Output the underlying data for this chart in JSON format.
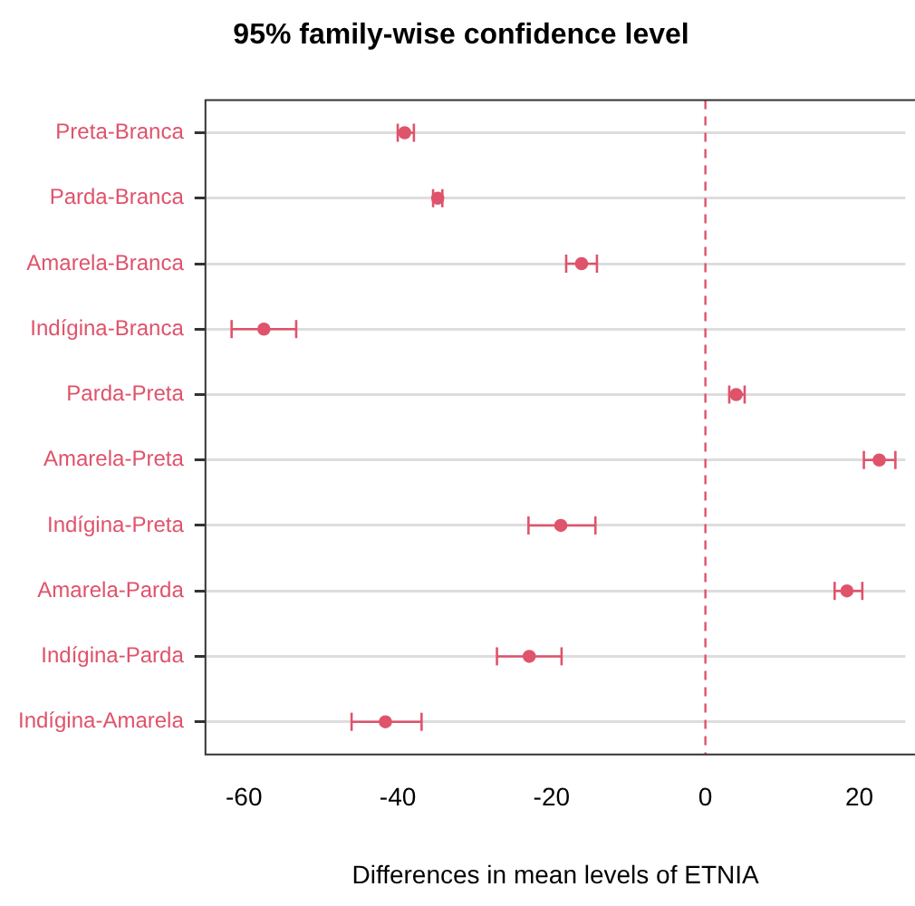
{
  "chart_data": {
    "type": "scatter",
    "title": "95% family-wise confidence level",
    "xlabel": "Differences in mean levels of ETNIA",
    "orientation": "horizontal",
    "categories": [
      "Preta-Branca",
      "Parda-Branca",
      "Amarela-Branca",
      "Indígina-Branca",
      "Parda-Preta",
      "Amarela-Preta",
      "Indígina-Preta",
      "Amarela-Parda",
      "Indígina-Parda",
      "Indígina-Amarela"
    ],
    "series": [
      {
        "color": "#df536b",
        "values": [
          -39.1,
          -34.8,
          -16.1,
          -57.4,
          4.0,
          22.6,
          -18.8,
          18.4,
          -22.9,
          -41.6
        ],
        "errors": [
          [
            -40.0,
            -37.9
          ],
          [
            -35.4,
            -34.2
          ],
          [
            -18.1,
            -14.1
          ],
          [
            -61.6,
            -53.2
          ],
          [
            3.1,
            5.1
          ],
          [
            20.6,
            24.7
          ],
          [
            -23.0,
            -14.3
          ],
          [
            16.8,
            20.4
          ],
          [
            -27.1,
            -18.7
          ],
          [
            -46.0,
            -36.9
          ]
        ]
      }
    ],
    "xlim": [
      -65,
      26
    ],
    "xticks": [
      -60,
      -40,
      -20,
      0,
      20
    ],
    "grid": "y",
    "marker": "circle",
    "legend": false,
    "ref_lines": [
      {
        "axis": "x",
        "value": 0,
        "color": "#df536b",
        "line_style": "dashed"
      }
    ]
  }
}
